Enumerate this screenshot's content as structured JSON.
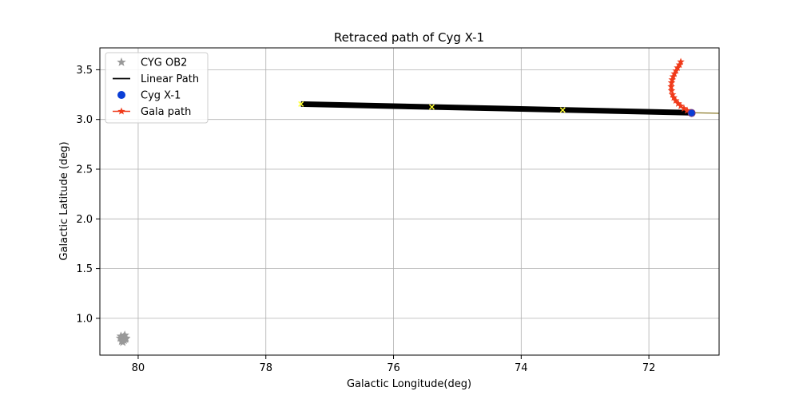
{
  "chart_data": {
    "type": "scatter",
    "title": "Retraced path of Cyg X-1",
    "xlabel": "Galactic Longitude(deg)",
    "ylabel": "Galactic Latitude (deg)",
    "xlim": [
      80.6,
      70.9
    ],
    "ylim": [
      0.63,
      3.72
    ],
    "x_ticks": [
      80,
      78,
      76,
      74,
      72
    ],
    "y_ticks": [
      1.0,
      1.5,
      2.0,
      2.5,
      3.0,
      3.5
    ],
    "x_tick_labels": [
      "80",
      "78",
      "76",
      "74",
      "72"
    ],
    "y_tick_labels": [
      "1.0",
      "1.5",
      "2.0",
      "2.5",
      "3.0",
      "3.5"
    ],
    "grid": true,
    "legend_position": "top-left",
    "legend": [
      {
        "label": "CYG OB2",
        "marker": "star",
        "color": "#999999"
      },
      {
        "label": "Linear Path",
        "marker": "line",
        "color": "#000000"
      },
      {
        "label": "Cyg X-1",
        "marker": "circle",
        "color": "#0a3ed6"
      },
      {
        "label": "Gala path",
        "marker": "line-star",
        "color": "#f03a1a"
      }
    ],
    "series": [
      {
        "name": "CYG OB2",
        "kind": "scatter-star",
        "color": "#999999",
        "x": [
          80.25,
          80.22,
          80.27,
          80.2,
          80.24,
          80.28,
          80.21,
          80.26,
          80.23,
          80.19,
          80.25,
          80.22
        ],
        "y": [
          0.78,
          0.8,
          0.82,
          0.79,
          0.76,
          0.8,
          0.83,
          0.77,
          0.81,
          0.8,
          0.79,
          0.78
        ]
      },
      {
        "name": "Linear Path",
        "kind": "thick-line",
        "color": "#000000",
        "x": [
          77.45,
          71.35
        ],
        "y": [
          3.155,
          3.068
        ]
      },
      {
        "name": "Linear Path extension",
        "kind": "thin-line",
        "color": "#8b7a2a",
        "x": [
          71.35,
          70.9
        ],
        "y": [
          3.068,
          3.062
        ]
      },
      {
        "name": "Markers",
        "kind": "x-marker",
        "color": "#ffff33",
        "x": [
          77.45,
          75.4,
          73.35
        ],
        "y": [
          3.155,
          3.125,
          3.095
        ]
      },
      {
        "name": "Gala path",
        "kind": "line-star",
        "color": "#f03a1a",
        "x": [
          71.35,
          71.4,
          71.45,
          71.5,
          71.54,
          71.58,
          71.61,
          71.63,
          71.645,
          71.65,
          71.645,
          71.635,
          71.62,
          71.6,
          71.575,
          71.55,
          71.52,
          71.5
        ],
        "y": [
          3.07,
          3.09,
          3.11,
          3.135,
          3.16,
          3.19,
          3.22,
          3.25,
          3.29,
          3.33,
          3.37,
          3.4,
          3.43,
          3.46,
          3.49,
          3.52,
          3.55,
          3.58
        ]
      },
      {
        "name": "Cyg X-1",
        "kind": "circle",
        "color": "#0a3ed6",
        "x": [
          71.33
        ],
        "y": [
          3.065
        ]
      }
    ]
  }
}
